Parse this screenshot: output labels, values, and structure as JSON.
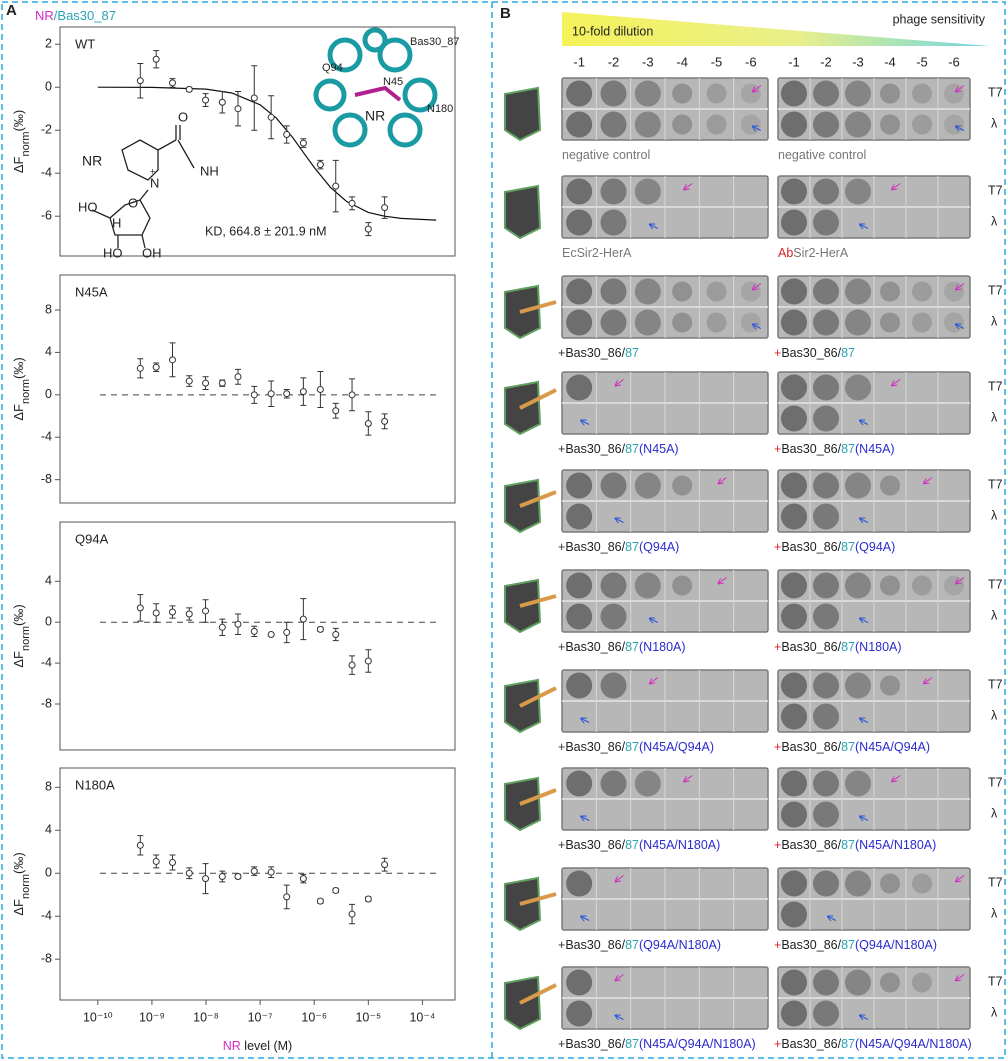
{
  "panel_labels": [
    "A",
    "B"
  ],
  "figure_title": [
    "NR",
    "/Bas30_87"
  ],
  "chart_data": [
    {
      "type": "scatter",
      "label": "WT",
      "xscale": "log",
      "xlim": [
        2e-11,
        0.0004
      ],
      "ylim": [
        -7.85,
        2.8
      ],
      "yticks": [
        -6,
        -4,
        -2,
        0,
        2
      ],
      "ylabel": {
        "main": "ΔF",
        "sub": "norm",
        "unit": "(‰)"
      },
      "marker_color": "#333333",
      "x": [
        6.1e-10,
        1.2e-09,
        2.4e-09,
        4.9e-09,
        9.8e-09,
        2e-08,
        3.9e-08,
        7.8e-08,
        1.6e-07,
        3.1e-07,
        6.3e-07,
        1.3e-06,
        2.5e-06,
        5e-06,
        1e-05,
        2e-05
      ],
      "values": [
        0.3,
        1.3,
        0.2,
        -0.1,
        -0.6,
        -0.7,
        -1.0,
        -0.5,
        -1.4,
        -2.2,
        -2.6,
        -3.6,
        -4.6,
        -5.4,
        -6.6,
        -5.6
      ],
      "errors": [
        0.8,
        0.4,
        0.2,
        0.1,
        0.3,
        0.5,
        0.8,
        1.5,
        1.0,
        0.4,
        0.2,
        0.2,
        1.2,
        0.3,
        0.3,
        0.5
      ],
      "fit": {
        "x": [
          1e-10,
          1e-09,
          1e-08,
          3e-08,
          1e-07,
          2e-07,
          4e-07,
          7e-07,
          1e-06,
          2e-06,
          4e-06,
          1e-05,
          2e-05,
          4e-05,
          0.00018
        ],
        "values": [
          0,
          -0.01,
          -0.09,
          -0.27,
          -0.82,
          -1.44,
          -2.34,
          -3.19,
          -3.73,
          -4.66,
          -5.32,
          -5.82,
          -6.0,
          -6.1,
          -6.18
        ]
      },
      "annotation": "KD, 664.8 ± 201.9 nM",
      "molecule": {
        "name": "NR",
        "atoms": [
          "O",
          "NH",
          "N",
          "+",
          "O",
          "HO",
          "H",
          "HO",
          "OH"
        ]
      },
      "inset": {
        "title": "Bas30_87",
        "labels": [
          "Q94",
          "N45",
          "NR",
          "N180"
        ]
      }
    },
    {
      "type": "scatter",
      "label": "N45A",
      "xscale": "log",
      "xlim": [
        2e-11,
        0.0004
      ],
      "ylim": [
        -10.2,
        11.3
      ],
      "yticks": [
        -8,
        -4,
        0,
        4,
        8
      ],
      "hline": 0,
      "ylabel": {
        "main": "ΔF",
        "sub": "norm",
        "unit": "(‰)"
      },
      "marker_color": "#333333",
      "x": [
        6.1e-10,
        1.2e-09,
        2.4e-09,
        4.9e-09,
        9.8e-09,
        2e-08,
        3.9e-08,
        7.8e-08,
        1.6e-07,
        3.1e-07,
        6.3e-07,
        1.3e-06,
        2.5e-06,
        5e-06,
        1e-05,
        2e-05
      ],
      "values": [
        2.5,
        2.6,
        3.3,
        1.3,
        1.1,
        1.1,
        1.7,
        0.0,
        0.1,
        0.1,
        0.3,
        0.5,
        -1.5,
        0.0,
        -2.7,
        -2.5
      ],
      "errors": [
        0.9,
        0.4,
        1.6,
        0.5,
        0.6,
        0.3,
        0.7,
        0.8,
        1.2,
        0.4,
        1.3,
        1.7,
        0.7,
        1.5,
        1.1,
        0.7
      ]
    },
    {
      "type": "scatter",
      "label": "Q94A",
      "xscale": "log",
      "xlim": [
        2e-11,
        0.0004
      ],
      "ylim": [
        -12.5,
        9.8
      ],
      "yticks": [
        -8,
        -4,
        0,
        4
      ],
      "hline": 0,
      "ylabel": {
        "main": "ΔF",
        "sub": "norm",
        "unit": "(‰)"
      },
      "marker_color": "#333333",
      "x": [
        6.1e-10,
        1.2e-09,
        2.4e-09,
        4.9e-09,
        9.8e-09,
        2e-08,
        3.9e-08,
        7.8e-08,
        1.6e-07,
        3.1e-07,
        6.3e-07,
        1.3e-06,
        2.5e-06,
        5e-06,
        1e-05
      ],
      "values": [
        1.4,
        0.9,
        1.0,
        0.8,
        1.1,
        -0.5,
        -0.2,
        -0.9,
        -1.2,
        -1.0,
        0.3,
        -0.7,
        -1.2,
        -4.2,
        -3.8
      ],
      "errors": [
        1.3,
        0.9,
        0.6,
        0.6,
        1.1,
        0.8,
        1.0,
        0.5,
        0.1,
        1.0,
        2.0,
        0.2,
        0.6,
        0.9,
        1.1
      ]
    },
    {
      "type": "scatter",
      "label": "N180A",
      "xscale": "log",
      "xlim": [
        2e-11,
        0.0004
      ],
      "ylim": [
        -11.8,
        9.8
      ],
      "yticks": [
        -8,
        -4,
        0,
        4,
        8
      ],
      "hline": 0,
      "ylabel": {
        "main": "ΔF",
        "sub": "norm",
        "unit": "(‰)"
      },
      "marker_color": "#333333",
      "x": [
        6.1e-10,
        1.2e-09,
        2.4e-09,
        4.9e-09,
        9.8e-09,
        2e-08,
        3.9e-08,
        7.8e-08,
        1.6e-07,
        3.1e-07,
        6.3e-07,
        1.3e-06,
        2.5e-06,
        5e-06,
        1e-05,
        2e-05
      ],
      "values": [
        2.6,
        1.1,
        1.0,
        0.0,
        -0.5,
        -0.3,
        -0.3,
        0.2,
        0.1,
        -2.2,
        -0.5,
        -2.6,
        -1.6,
        -3.8,
        -2.4,
        0.8
      ],
      "errors": [
        0.9,
        0.6,
        0.7,
        0.5,
        1.4,
        0.5,
        0.2,
        0.4,
        0.5,
        1.1,
        0.4,
        0.2,
        0.2,
        0.9,
        0.2,
        0.6
      ],
      "xticks": [
        {
          "value": 1e-10,
          "label": "10⁻¹⁰"
        },
        {
          "value": 1e-09,
          "label": "10⁻⁹"
        },
        {
          "value": 1e-08,
          "label": "10⁻⁸"
        },
        {
          "value": 1e-07,
          "label": "10⁻⁷"
        },
        {
          "value": 1e-06,
          "label": "10⁻⁶"
        },
        {
          "value": 1e-05,
          "label": "10⁻⁵"
        },
        {
          "value": 0.0001,
          "label": "10⁻⁴"
        }
      ],
      "xlabel": [
        "NR",
        " level (M)"
      ]
    }
  ],
  "panel_b": {
    "dilution_label": "10-fold dilution",
    "sensitivity_label": "phage sensitivity",
    "dilutions": [
      "-1",
      "-2",
      "-3",
      "-4",
      "-5",
      "-6"
    ],
    "phages": [
      "T7",
      "λ"
    ],
    "rows": [
      {
        "left": {
          "text": "negative control"
        },
        "right": {
          "text": "negative control"
        }
      },
      {
        "left": {
          "text": "EcSir2-HerA"
        },
        "right": {
          "prefix": "Ab",
          "text": "Sir2-HerA"
        }
      },
      {
        "left": {
          "prefix": "+",
          "text": "Bas30_86/",
          "sub": "87"
        },
        "right": {
          "prefix": "+",
          "text": "Bas30_86/",
          "sub": "87"
        }
      },
      {
        "left": {
          "prefix": "+",
          "text": "Bas30_86/",
          "sub": "87",
          "mut": "(N45A)"
        },
        "right": {
          "prefix": "+",
          "text": "Bas30_86/",
          "sub": "87",
          "mut": "(N45A)"
        }
      },
      {
        "left": {
          "prefix": "+",
          "text": "Bas30_86/",
          "sub": "87",
          "mut": "(Q94A)"
        },
        "right": {
          "prefix": "+",
          "text": "Bas30_86/",
          "sub": "87",
          "mut": "(Q94A)"
        }
      },
      {
        "left": {
          "prefix": "+",
          "text": "Bas30_86/",
          "sub": "87",
          "mut": "(N180A)"
        },
        "right": {
          "prefix": "+",
          "text": "Bas30_86/",
          "sub": "87",
          "mut": "(N180A)"
        }
      },
      {
        "left": {
          "prefix": "+",
          "text": "Bas30_86/",
          "sub": "87",
          "mut": "(N45A/Q94A)"
        },
        "right": {
          "prefix": "+",
          "text": "Bas30_86/",
          "sub": "87",
          "mut": "(N45A/Q94A)"
        }
      },
      {
        "left": {
          "prefix": "+",
          "text": "Bas30_86/",
          "sub": "87",
          "mut": "(N45A/N180A)"
        },
        "right": {
          "prefix": "+",
          "text": "Bas30_86/",
          "sub": "87",
          "mut": "(N45A/N180A)"
        }
      },
      {
        "left": {
          "prefix": "+",
          "text": "Bas30_86/",
          "sub": "87",
          "mut": "(Q94A/N180A)"
        },
        "right": {
          "prefix": "+",
          "text": "Bas30_86/",
          "sub": "87",
          "mut": "(Q94A/N180A)"
        }
      },
      {
        "left": {
          "prefix": "+",
          "text": "Bas30_86/",
          "sub": "87",
          "mut": "(N45A/Q94A/N180A)"
        },
        "right": {
          "prefix": "+",
          "text": "Bas30_86/",
          "sub": "87",
          "mut": "(N45A/Q94A/N180A)"
        }
      }
    ]
  }
}
